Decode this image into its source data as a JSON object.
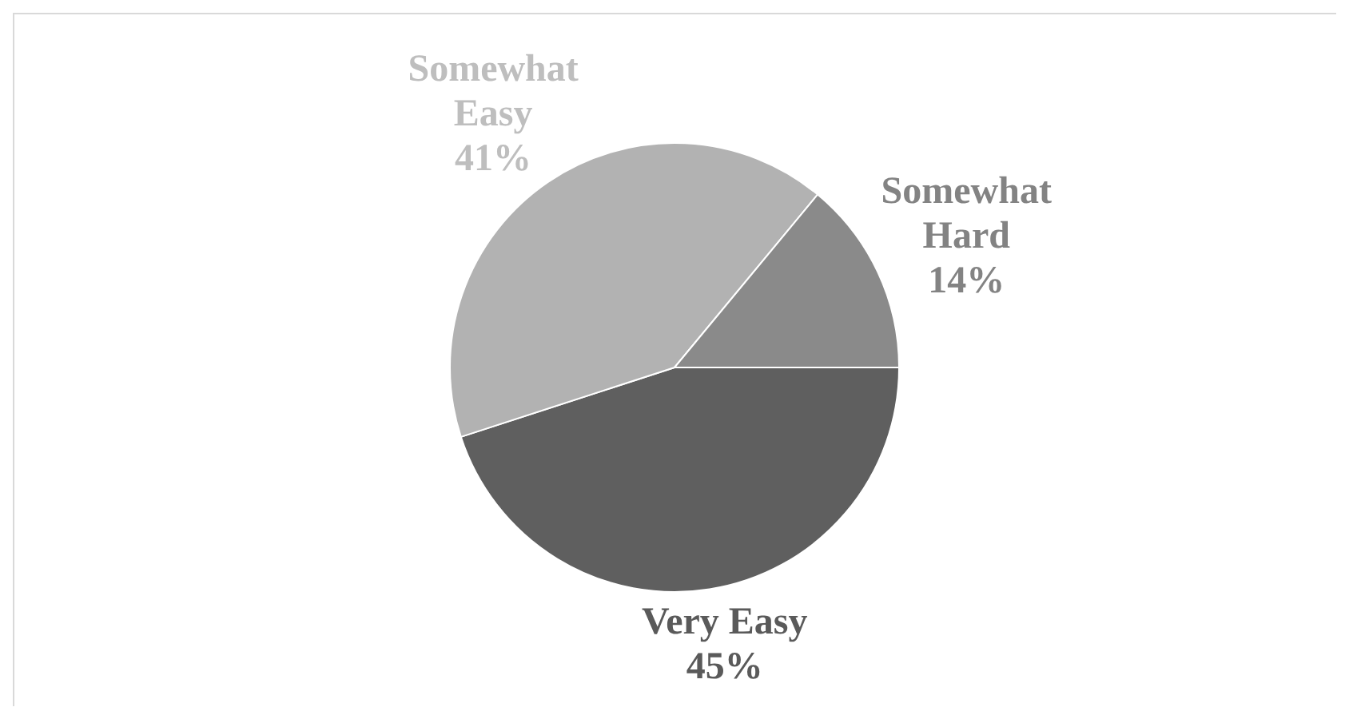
{
  "chart_data": {
    "type": "pie",
    "categories": [
      "Very Easy",
      "Somewhat Easy",
      "Somewhat Hard"
    ],
    "values": [
      45,
      41,
      14
    ],
    "colors": [
      "#5f5f5f",
      "#b2b2b2",
      "#8a8a8a"
    ],
    "value_labels": [
      "45%",
      "41%",
      "14%"
    ],
    "legend": false
  }
}
